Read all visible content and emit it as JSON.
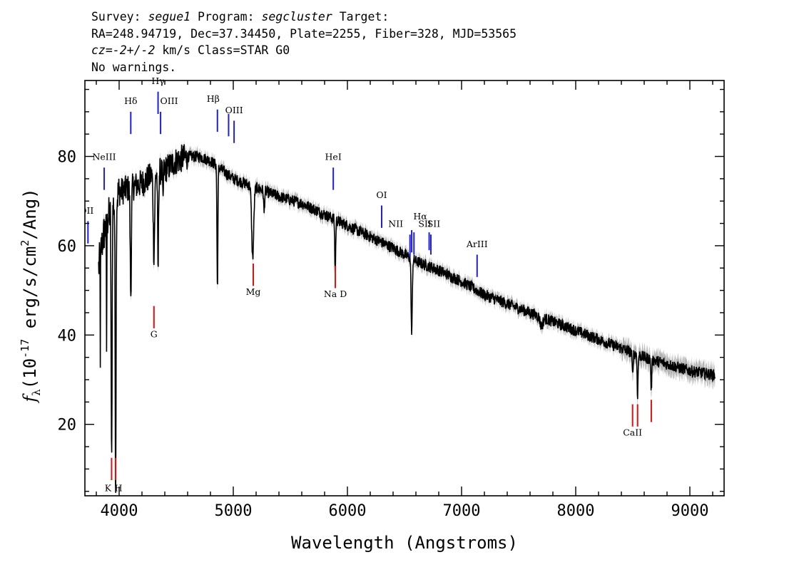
{
  "header": {
    "line1": {
      "survey_label": "Survey: ",
      "survey": "segue1",
      "program_label": " Program: ",
      "program": "segcluster",
      "target_label": " Target:"
    },
    "line2": "RA=248.94719, Dec=37.34450, Plate=2255, Fiber=328, MJD=53565",
    "line3": {
      "cz": "cz=-2+/-2",
      "rest": " km/s Class=STAR G0"
    },
    "line4": "No warnings."
  },
  "chart_data": {
    "type": "line",
    "xlabel": "Wavelength (Angstroms)",
    "ylabel_main": "f",
    "ylabel_sub": "λ",
    "ylabel_unit": "(10",
    "ylabel_exp": "-17",
    "ylabel_rest": " erg/s/cm",
    "ylabel_exp2": "2",
    "ylabel_end": "/Ang)",
    "xlim": [
      3700,
      9300
    ],
    "ylim": [
      4,
      97
    ],
    "x_ticks": [
      4000,
      5000,
      6000,
      7000,
      8000,
      9000
    ],
    "x_tick_labels": [
      "4000",
      "5000",
      "6000",
      "7000",
      "8000",
      "9000"
    ],
    "y_ticks": [
      20,
      40,
      60,
      80
    ],
    "y_tick_labels": [
      "20",
      "40",
      "60",
      "80"
    ],
    "colors": {
      "spectrum": "#000000",
      "error": "#b3b3b3",
      "emission": "#1f1fdb",
      "absorption": "#e01010"
    },
    "continuum": [
      [
        3820,
        55
      ],
      [
        3860,
        62
      ],
      [
        3900,
        66
      ],
      [
        3950,
        69
      ],
      [
        4000,
        72
      ],
      [
        4100,
        73
      ],
      [
        4200,
        74
      ],
      [
        4300,
        76
      ],
      [
        4400,
        77
      ],
      [
        4500,
        79
      ],
      [
        4600,
        80
      ],
      [
        4700,
        80
      ],
      [
        4800,
        79
      ],
      [
        4900,
        77
      ],
      [
        5000,
        75
      ],
      [
        5200,
        73
      ],
      [
        5400,
        71
      ],
      [
        5600,
        69.5
      ],
      [
        5800,
        67
      ],
      [
        6000,
        64.5
      ],
      [
        6200,
        62
      ],
      [
        6400,
        59.5
      ],
      [
        6600,
        56.5
      ],
      [
        6800,
        54.5
      ],
      [
        7000,
        52
      ],
      [
        7200,
        49
      ],
      [
        7400,
        47
      ],
      [
        7600,
        45
      ],
      [
        7800,
        43
      ],
      [
        8000,
        41
      ],
      [
        8200,
        39
      ],
      [
        8400,
        37
      ],
      [
        8600,
        35
      ],
      [
        8800,
        33.5
      ],
      [
        9000,
        32
      ],
      [
        9220,
        31
      ]
    ],
    "absorption_features": [
      [
        3835,
        1.5,
        22
      ],
      [
        3890,
        2,
        28
      ],
      [
        3934,
        4,
        58
      ],
      [
        3969,
        4,
        55
      ],
      [
        3970,
        3,
        10
      ],
      [
        4102,
        5,
        24
      ],
      [
        4305,
        6,
        18
      ],
      [
        4341,
        4,
        22
      ],
      [
        4384,
        3,
        8
      ],
      [
        4861,
        4,
        27
      ],
      [
        5170,
        9,
        16
      ],
      [
        5270,
        4,
        5
      ],
      [
        5893,
        4,
        12
      ],
      [
        6563,
        5,
        17
      ],
      [
        7700,
        12,
        2
      ],
      [
        8498,
        4,
        5
      ],
      [
        8542,
        4,
        9
      ],
      [
        8662,
        4,
        7
      ]
    ],
    "emission_lines": [
      {
        "label": "OII",
        "wave": 3727,
        "y1": 60.5,
        "y2": 65.5,
        "ly": 67.2,
        "lx": -2
      },
      {
        "label": "NeIII",
        "wave": 3869,
        "y1": 72.5,
        "y2": 77.5,
        "ly": 79.2,
        "lx": 0
      },
      {
        "label": "Hδ",
        "wave": 4102,
        "y1": 85.0,
        "y2": 90.0,
        "ly": 91.7,
        "lx": 0
      },
      {
        "label": "Hγ",
        "wave": 4341,
        "y1": 89.5,
        "y2": 94.5,
        "ly": 96.2,
        "lx": 0
      },
      {
        "label": "OIII",
        "wave": 4363,
        "y1": 85.0,
        "y2": 90.0,
        "ly": 91.7,
        "lx": 12
      },
      {
        "label": "Hβ",
        "wave": 4861,
        "y1": 85.5,
        "y2": 90.5,
        "ly": 92.2,
        "lx": -6
      },
      {
        "label": "OIII",
        "wave": 4959,
        "y1": 84.5,
        "y2": 89.5,
        "ly": 0,
        "lx": 0
      },
      {
        "label": "OIII",
        "wave": 5007,
        "y1": 83.0,
        "y2": 88.0,
        "ly": 89.7,
        "lx": 0
      },
      {
        "label": "HeI",
        "wave": 5876,
        "y1": 72.5,
        "y2": 77.5,
        "ly": 79.2,
        "lx": 0
      },
      {
        "label": "OI",
        "wave": 6300,
        "y1": 64.0,
        "y2": 69.0,
        "ly": 70.7,
        "lx": 0
      },
      {
        "label": "NII",
        "wave": 6548,
        "y1": 57.5,
        "y2": 62.5,
        "ly": 64.2,
        "lx": -20
      },
      {
        "label": "Hα",
        "wave": 6563,
        "y1": 58.5,
        "y2": 63.5,
        "ly": 65.9,
        "lx": 12
      },
      {
        "label": "NII",
        "wave": 6583,
        "y1": 58.0,
        "y2": 63.0,
        "ly": 0,
        "lx": 0
      },
      {
        "label": "SII",
        "wave": 6716,
        "y1": 59.0,
        "y2": 63.0,
        "ly": 64.2,
        "lx": -6
      },
      {
        "label": "SII",
        "wave": 6731,
        "y1": 58.0,
        "y2": 62.5,
        "ly": 64.2,
        "lx": 4
      },
      {
        "label": "ArIII",
        "wave": 7136,
        "y1": 53.0,
        "y2": 58.0,
        "ly": 59.7,
        "lx": 0
      }
    ],
    "absorption_lines": [
      {
        "label": "K",
        "wave": 3934,
        "y1": 7.5,
        "y2": 12.5,
        "ly": 5.0,
        "lx": -5
      },
      {
        "label": "H",
        "wave": 3969,
        "y1": 7.5,
        "y2": 12.5,
        "ly": 5.0,
        "lx": 4
      },
      {
        "label": "G",
        "wave": 4305,
        "y1": 41.5,
        "y2": 46.5,
        "ly": 39.5,
        "lx": 0
      },
      {
        "label": "Mg",
        "wave": 5175,
        "y1": 51.0,
        "y2": 56.0,
        "ly": 49.0,
        "lx": 0
      },
      {
        "label": "Na D",
        "wave": 5894,
        "y1": 50.5,
        "y2": 55.5,
        "ly": 48.5,
        "lx": 0
      },
      {
        "label": "CaII",
        "wave": 8498,
        "y1": 19.5,
        "y2": 24.5,
        "ly": 17.5,
        "lx": 0
      },
      {
        "label": "",
        "wave": 8542,
        "y1": 19.5,
        "y2": 24.5,
        "ly": 0,
        "lx": 0
      },
      {
        "label": "",
        "wave": 8662,
        "y1": 20.5,
        "y2": 25.5,
        "ly": 0,
        "lx": 0
      }
    ]
  }
}
